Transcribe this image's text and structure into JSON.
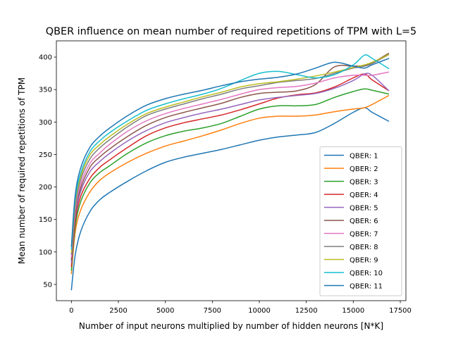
{
  "chart_data": {
    "type": "line",
    "title": "QBER influence on mean number of required repetitions of TPM with L=5",
    "xlabel": "Number of input neurons multiplied by number of hidden neurons [N*K]",
    "ylabel": "Mean number of required repetitions of TPM",
    "xlim": [
      -800,
      17800
    ],
    "ylim": [
      25,
      425
    ],
    "xticks": [
      0,
      2500,
      5000,
      7500,
      10000,
      12500,
      15000,
      17500
    ],
    "yticks": [
      50,
      100,
      150,
      200,
      250,
      300,
      350,
      400
    ],
    "grid": false,
    "legend_position": "lower right",
    "x": [
      0,
      200,
      500,
      1000,
      1500,
      2000,
      3000,
      4000,
      5000,
      6000,
      7000,
      8000,
      9000,
      10000,
      11000,
      12000,
      13000,
      14000,
      15000,
      15600,
      16000,
      16900
    ],
    "series": [
      {
        "name": "QBER: 1",
        "color": "#1f77b4",
        "values": [
          41,
          95,
          132,
          163,
          180,
          191,
          209,
          225,
          238,
          246,
          252,
          258,
          265,
          272,
          277,
          280,
          284,
          298,
          315,
          322,
          315,
          301
        ]
      },
      {
        "name": "QBER: 2",
        "color": "#ff7f0e",
        "values": [
          66,
          130,
          165,
          193,
          210,
          221,
          238,
          252,
          263,
          271,
          279,
          288,
          298,
          306,
          309,
          309,
          311,
          316,
          320,
          322,
          327,
          341
        ]
      },
      {
        "name": "QBER: 3",
        "color": "#2ca02c",
        "values": [
          71,
          139,
          178,
          207,
          222,
          232,
          252,
          268,
          279,
          286,
          291,
          298,
          309,
          320,
          325,
          325,
          327,
          338,
          347,
          351,
          349,
          343
        ]
      },
      {
        "name": "QBER: 4",
        "color": "#d62728",
        "values": [
          77,
          147,
          186,
          214,
          230,
          241,
          261,
          279,
          291,
          299,
          305,
          311,
          319,
          328,
          337,
          342,
          345,
          354,
          368,
          374,
          365,
          348
        ]
      },
      {
        "name": "QBER: 5",
        "color": "#9467bd",
        "values": [
          83,
          154,
          194,
          224,
          239,
          251,
          271,
          287,
          299,
          307,
          314,
          320,
          327,
          334,
          338,
          341,
          344,
          352,
          364,
          374,
          372,
          348
        ]
      },
      {
        "name": "QBER: 6",
        "color": "#8c564b",
        "values": [
          87,
          159,
          199,
          231,
          246,
          258,
          278,
          295,
          307,
          315,
          322,
          329,
          338,
          344,
          346,
          348,
          358,
          385,
          386,
          387,
          391,
          406
        ]
      },
      {
        "name": "QBER: 7",
        "color": "#e377c2",
        "values": [
          92,
          164,
          205,
          237,
          252,
          265,
          286,
          302,
          313,
          321,
          328,
          335,
          343,
          350,
          353,
          355,
          360,
          368,
          372,
          372,
          372,
          377
        ]
      },
      {
        "name": "QBER: 8",
        "color": "#7f7f7f",
        "values": [
          96,
          170,
          212,
          244,
          260,
          272,
          293,
          310,
          320,
          328,
          336,
          343,
          351,
          356,
          361,
          364,
          367,
          375,
          383,
          386,
          390,
          404
        ]
      },
      {
        "name": "QBER: 9",
        "color": "#bcbd22",
        "values": [
          99,
          175,
          217,
          250,
          265,
          277,
          297,
          313,
          323,
          331,
          339,
          346,
          354,
          359,
          362,
          366,
          371,
          377,
          384,
          388,
          392,
          404
        ]
      },
      {
        "name": "QBER: 10",
        "color": "#17becf",
        "values": [
          103,
          180,
          222,
          255,
          271,
          283,
          302,
          318,
          328,
          336,
          343,
          352,
          364,
          375,
          378,
          373,
          368,
          373,
          388,
          403,
          398,
          382
        ]
      },
      {
        "name": "QBER: 11",
        "color": "#1f77b4",
        "values": [
          108,
          187,
          230,
          262,
          278,
          290,
          310,
          326,
          336,
          343,
          349,
          356,
          362,
          366,
          369,
          374,
          383,
          392,
          386,
          383,
          388,
          398
        ]
      }
    ]
  }
}
